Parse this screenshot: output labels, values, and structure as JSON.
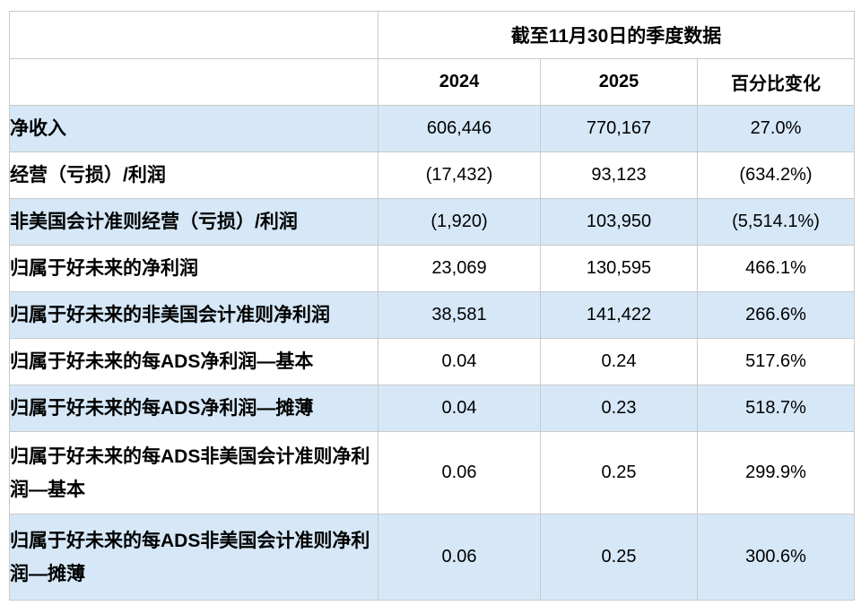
{
  "table": {
    "title": "截至11月30日的季度数据",
    "columns": [
      "2024",
      "2025",
      "百分比变化"
    ],
    "rows": [
      {
        "label": "净收入",
        "y2024": "606,446",
        "y2025": "770,167",
        "change": "27.0%"
      },
      {
        "label": "经营（亏损）/利润",
        "y2024": "(17,432)",
        "y2025": "93,123",
        "change": "(634.2%)"
      },
      {
        "label": "非美国会计准则经营（亏损）/利润",
        "y2024": "(1,920)",
        "y2025": "103,950",
        "change": "(5,514.1%)"
      },
      {
        "label": "归属于好未来的净利润",
        "y2024": "23,069",
        "y2025": "130,595",
        "change": "466.1%"
      },
      {
        "label": "归属于好未来的非美国会计准则净利润",
        "y2024": "38,581",
        "y2025": "141,422",
        "change": "266.6%"
      },
      {
        "label": "归属于好未来的每ADS净利润—基本",
        "y2024": "0.04",
        "y2025": "0.24",
        "change": "517.6%"
      },
      {
        "label": "归属于好未来的每ADS净利润—摊薄",
        "y2024": "0.04",
        "y2025": "0.23",
        "change": "518.7%"
      },
      {
        "label": "归属于好未来的每ADS非美国会计准则净利润—基本",
        "y2024": "0.06",
        "y2025": "0.25",
        "change": "299.9%"
      },
      {
        "label": "归属于好未来的每ADS非美国会计准则净利润—摊薄",
        "y2024": "0.06",
        "y2025": "0.25",
        "change": "300.6%"
      }
    ],
    "colors": {
      "row_highlight": "#d6e8f7",
      "border": "#c9c9c9",
      "text": "#000000",
      "background": "#ffffff"
    }
  }
}
